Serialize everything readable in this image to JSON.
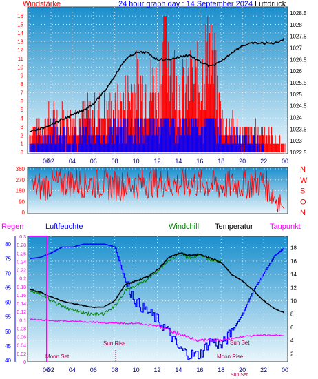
{
  "top": {
    "left_title": "Windstärke",
    "center_title": "24 hour graph day : 14 September 2024",
    "right_title": "Luftdruck",
    "left_ticks": [
      "0",
      "1",
      "2",
      "3",
      "4",
      "5",
      "6",
      "7",
      "8",
      "9",
      "10",
      "11",
      "12",
      "13",
      "14",
      "15",
      "16"
    ],
    "right_ticks": [
      "1022.5",
      "1023",
      "1023.5",
      "1024",
      "1024.5",
      "1025",
      "1025.5",
      "1026",
      "1026.5",
      "1027",
      "1027.5",
      "1028",
      "1028.5"
    ],
    "x_ticks": [
      "00",
      "02",
      "04",
      "06",
      "08",
      "10",
      "12",
      "14",
      "16",
      "18",
      "20",
      "22",
      "00"
    ]
  },
  "mid": {
    "left_ticks": [
      "0",
      "90",
      "180",
      "270",
      "360"
    ],
    "right_labels": [
      "N",
      "W",
      "S",
      "O",
      "N"
    ]
  },
  "bottom": {
    "labels": {
      "regen": "Regen",
      "luftfeuchte": "Luftfeuchte",
      "windchill": "Windchill",
      "temperatur": "Temperatur",
      "taupunkt": "Taupunkt"
    },
    "humidity_ticks": [
      "40",
      "45",
      "50",
      "55",
      "60",
      "65",
      "70",
      "75",
      "80"
    ],
    "rain_ticks": [
      "0",
      "0.02",
      "0.04",
      "0.06",
      "0.08",
      "0.1",
      "0.12",
      "0.14",
      "0.16",
      "0.18",
      "0.2",
      "0.22",
      "0.24",
      "0.26",
      "0.28",
      "0.3"
    ],
    "temp_ticks": [
      "2",
      "4",
      "6",
      "8",
      "10",
      "12",
      "14",
      "16",
      "18"
    ],
    "x_ticks": [
      "00",
      "02",
      "04",
      "06",
      "08",
      "10",
      "12",
      "14",
      "16",
      "18",
      "20",
      "22",
      "00"
    ],
    "annotations": {
      "moon_set": "Moon Set",
      "sun_rise": "Sun Rise",
      "sun_set": "Sun Set",
      "moon_rise": "Moon Rise",
      "sun_set_bottom": "Sun Set"
    }
  },
  "colors": {
    "wind_gust": "#ff0000",
    "wind_avg": "#0000ff",
    "pressure": "#000000",
    "direction": "#ff0000",
    "humidity": "#0000ff",
    "windchill": "#008000",
    "temperature": "#000000",
    "dewpoint": "#ff00ff",
    "rain": "#ff00ff",
    "bg_top": "#1a8fcd",
    "bg_bottom": "#eaf6fc"
  },
  "chart_data": [
    {
      "type": "line",
      "title": "24 hour graph day : 14 September 2024",
      "xlabel": "",
      "x_ticks": [
        "00",
        "02",
        "04",
        "06",
        "08",
        "10",
        "12",
        "14",
        "16",
        "18",
        "20",
        "22",
        "00"
      ],
      "series": [
        {
          "name": "Windstärke",
          "axis": "left",
          "ylim": [
            0,
            16.5
          ],
          "x": [
            0,
            2,
            4,
            6,
            8,
            10,
            12,
            13,
            14,
            16,
            17,
            18,
            20,
            22,
            24
          ],
          "values": [
            3,
            5,
            5,
            6,
            6,
            10,
            10,
            16,
            9,
            11,
            16,
            5,
            3,
            3,
            1
          ]
        },
        {
          "name": "Luftdruck",
          "axis": "right",
          "ylim": [
            1022.5,
            1028.5
          ],
          "x": [
            0,
            1,
            2,
            3,
            4,
            5,
            6,
            7,
            8,
            9,
            10,
            11,
            12,
            13,
            14,
            15,
            16,
            17,
            18,
            19,
            20,
            21,
            22,
            23,
            24
          ],
          "values": [
            1023.4,
            1023.5,
            1023.7,
            1023.9,
            1024.1,
            1024.3,
            1024.6,
            1025.1,
            1025.8,
            1026.5,
            1026.8,
            1026.8,
            1026.5,
            1026.5,
            1026.6,
            1026.7,
            1026.4,
            1026.2,
            1026.4,
            1026.8,
            1027.1,
            1027.2,
            1027.2,
            1027.2,
            1027.4
          ]
        }
      ]
    },
    {
      "type": "line",
      "title": "",
      "ylim": [
        0,
        360
      ],
      "x_ticks": [
        "00",
        "02",
        "04",
        "06",
        "08",
        "10",
        "12",
        "14",
        "16",
        "18",
        "20",
        "22",
        "00"
      ],
      "series": [
        {
          "name": "",
          "x": [
            0,
            2,
            4,
            6,
            8,
            10,
            12,
            14,
            16,
            18,
            20,
            22,
            24
          ],
          "values": [
            200,
            230,
            250,
            240,
            220,
            230,
            250,
            230,
            240,
            220,
            230,
            250,
            20
          ]
        }
      ]
    },
    {
      "type": "line",
      "title": "",
      "x_ticks": [
        "00",
        "02",
        "04",
        "06",
        "08",
        "10",
        "12",
        "14",
        "16",
        "18",
        "20",
        "22",
        "00"
      ],
      "series": [
        {
          "name": "Luftfeuchte",
          "axis": "humidity",
          "ylim": [
            40,
            81
          ],
          "x": [
            0,
            1,
            2,
            3,
            4,
            5,
            6,
            7,
            8,
            9,
            10,
            11,
            12,
            13,
            14,
            15,
            16,
            17,
            18,
            19,
            20,
            21,
            22,
            23,
            24
          ],
          "values": [
            75,
            75.5,
            77,
            79,
            79,
            80,
            80,
            80,
            79,
            67,
            60,
            57,
            54,
            50,
            44,
            42,
            42,
            47,
            45,
            50,
            56,
            64,
            70,
            76,
            79
          ]
        },
        {
          "name": "Windchill",
          "axis": "temp",
          "ylim": [
            1,
            19
          ],
          "x": [
            0,
            1,
            2,
            3,
            4,
            5,
            6,
            7,
            8,
            9,
            10,
            11,
            12,
            13,
            14,
            15,
            16,
            17,
            18
          ],
          "values": [
            11.6,
            11,
            10,
            9.2,
            8.6,
            8.2,
            7.9,
            8,
            9.2,
            11.5,
            12.3,
            13.2,
            14.5,
            16,
            17,
            16.6,
            16.8,
            16.2,
            16
          ]
        },
        {
          "name": "Temperatur",
          "axis": "temp",
          "ylim": [
            1,
            19
          ],
          "x": [
            0,
            1,
            2,
            3,
            4,
            5,
            6,
            7,
            8,
            9,
            10,
            11,
            12,
            13,
            14,
            15,
            16,
            17,
            18,
            19,
            20,
            21,
            22,
            23,
            24
          ],
          "values": [
            11.7,
            11.3,
            10.6,
            10,
            9.6,
            9.3,
            9,
            9.1,
            10,
            12.5,
            13,
            13.6,
            14.6,
            16.4,
            17.2,
            16.9,
            17,
            16.4,
            15.8,
            14,
            13,
            11.6,
            10,
            8.8,
            8.2
          ]
        },
        {
          "name": "Taupunkt",
          "axis": "temp",
          "ylim": [
            1,
            19
          ],
          "x": [
            0,
            2,
            4,
            6,
            8,
            10,
            12,
            14,
            16,
            18,
            20,
            22,
            24
          ],
          "values": [
            7.2,
            7,
            6.9,
            6.8,
            6.6,
            6.6,
            6.2,
            5,
            4,
            4,
            4.6,
            4.8,
            4.8
          ]
        },
        {
          "name": "Regen",
          "axis": "rain",
          "ylim": [
            0,
            0.3
          ],
          "x": [
            0,
            24
          ],
          "values": [
            0,
            0
          ]
        }
      ]
    }
  ]
}
